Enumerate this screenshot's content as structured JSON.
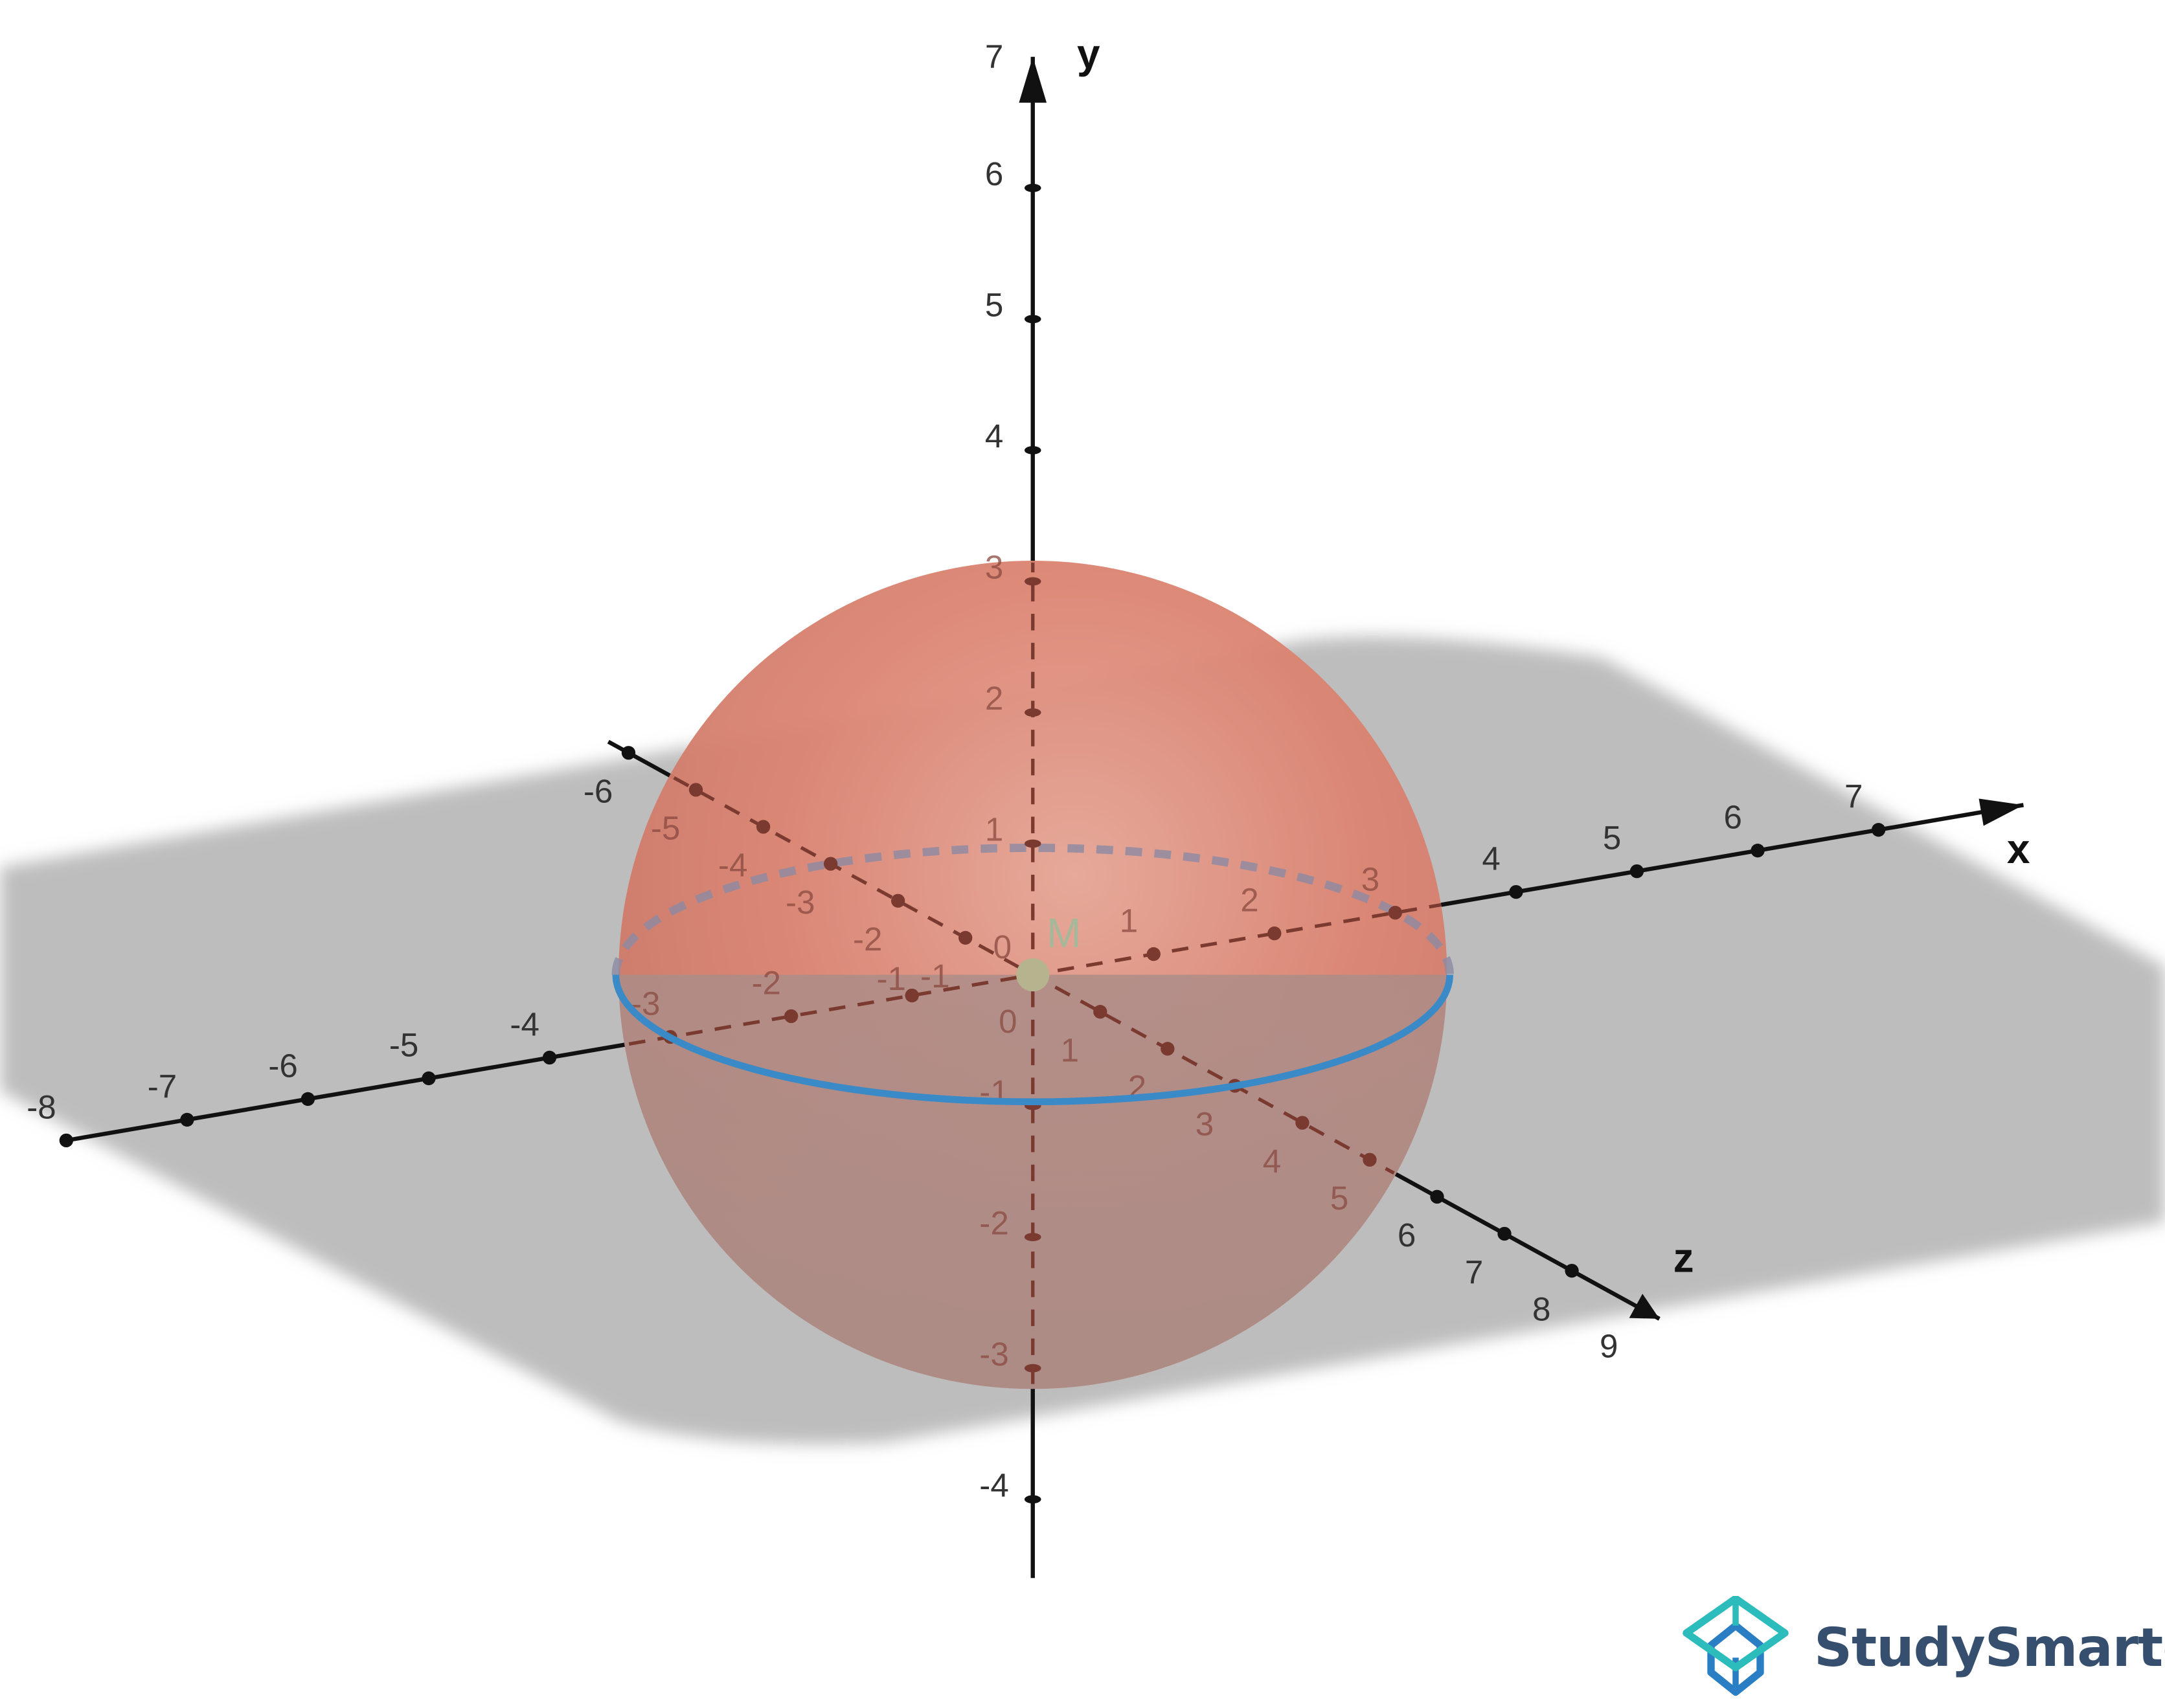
{
  "diagram": {
    "point_label": "M",
    "axes": {
      "x": {
        "name": "x",
        "ticks": [
          "-8",
          "-7",
          "-6",
          "-5",
          "-4",
          "-3",
          "-2",
          "-1",
          "1",
          "2",
          "3",
          "4",
          "5",
          "6",
          "7"
        ]
      },
      "y": {
        "name": "y",
        "ticks": [
          "-4",
          "-3",
          "-2",
          "-1",
          "0",
          "1",
          "2",
          "3",
          "4",
          "5",
          "6",
          "7"
        ]
      },
      "z": {
        "name": "z",
        "ticks": [
          "-6",
          "-5",
          "-4",
          "-3",
          "-2",
          "-1",
          "0",
          "1",
          "2",
          "3",
          "4",
          "5",
          "6",
          "7",
          "8",
          "9"
        ]
      }
    },
    "colors": {
      "sphere": "#d9826f",
      "equator": "#3a8ac8",
      "plane": "#bdbdbd",
      "axis": "#111111",
      "center_point": "#b5b48e"
    }
  },
  "logo": {
    "text": "StudySmarter"
  }
}
